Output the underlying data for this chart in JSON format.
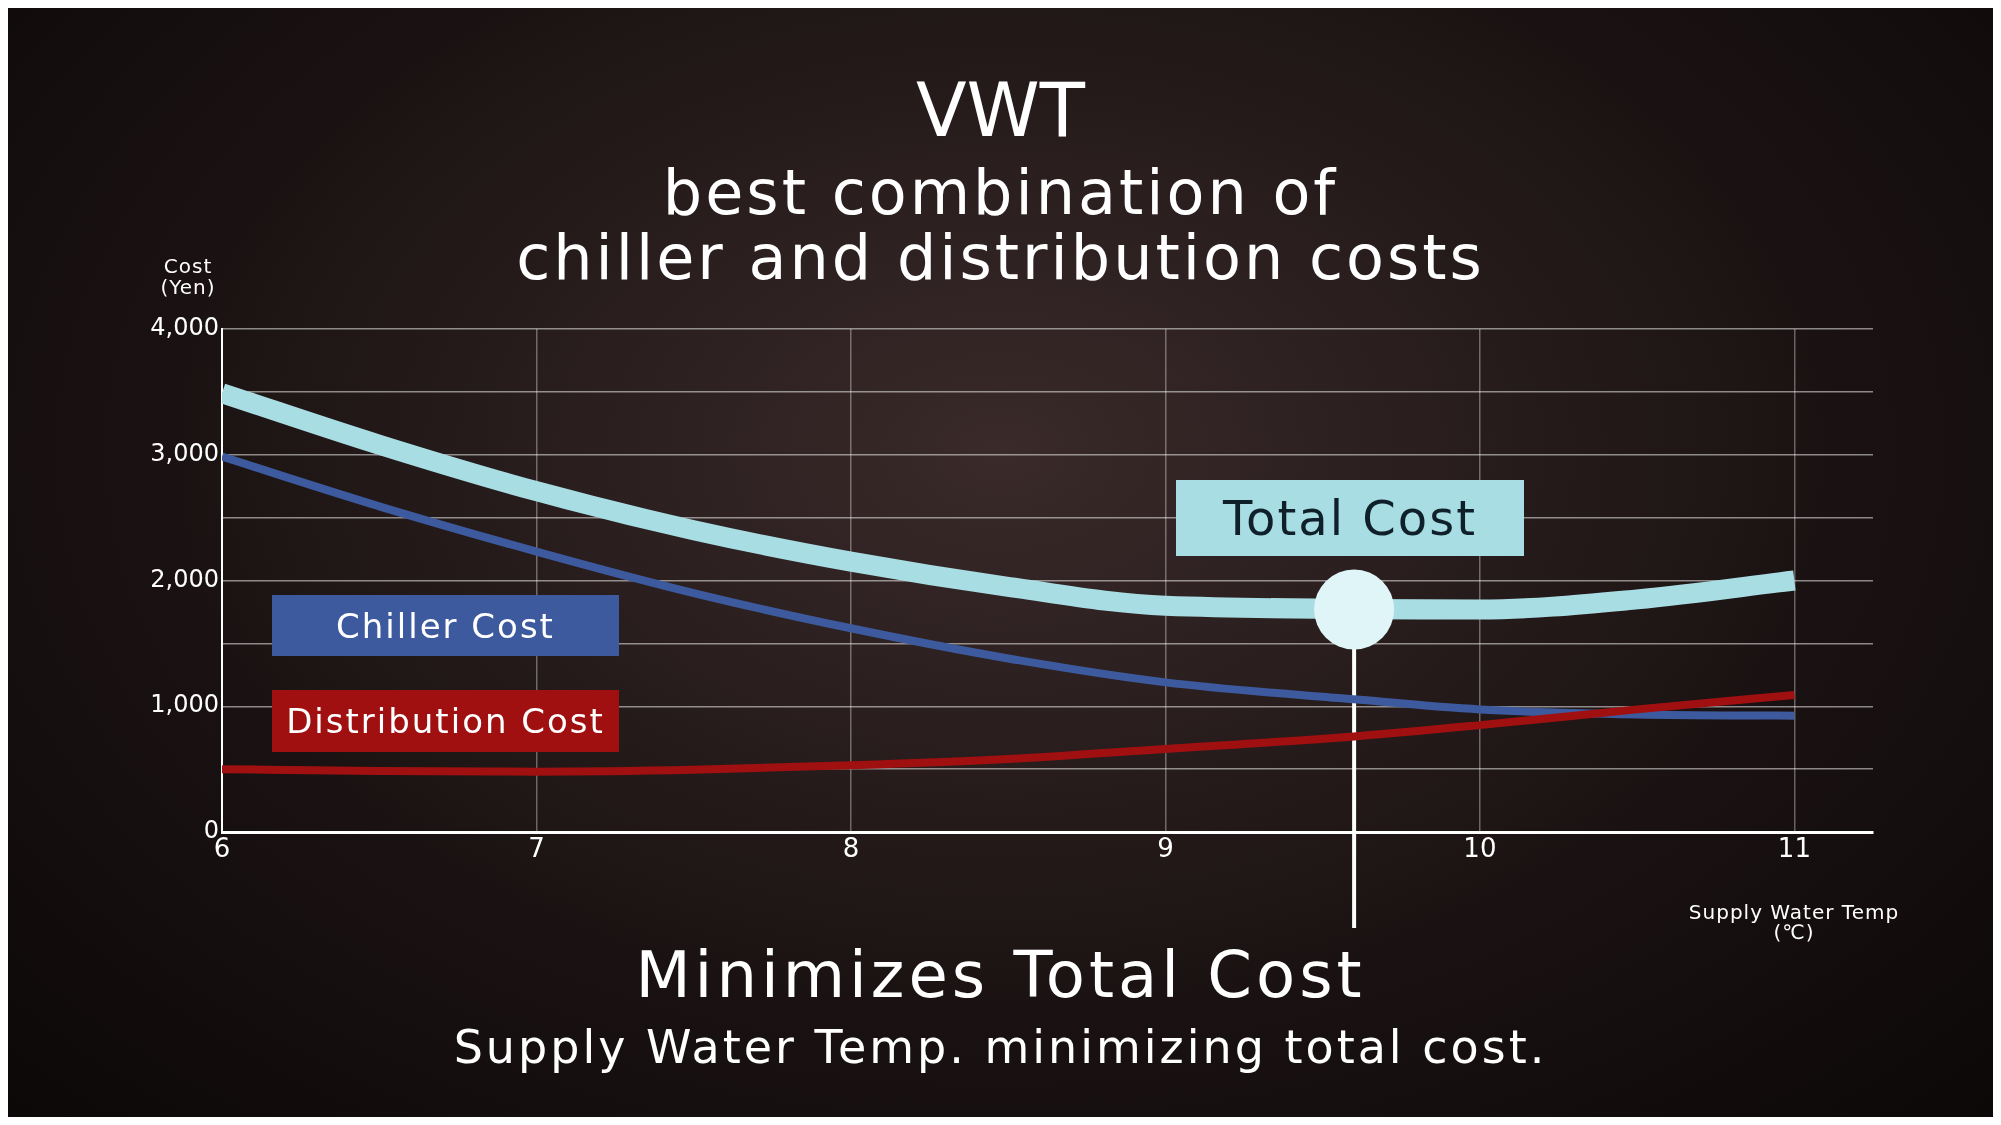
{
  "chart_data": {
    "type": "line",
    "title": "VWT",
    "subtitle": "best combination of\nchiller and distribution costs",
    "ylabel": "Cost\n(Yen)",
    "xlabel": "Supply Water Temp\n(℃)",
    "xlim": [
      6,
      11.25
    ],
    "xticks": [
      6,
      7,
      8,
      9,
      10,
      11
    ],
    "ylim": [
      0,
      4000
    ],
    "yticks": [
      0,
      {
        "value": 500,
        "label": null
      },
      {
        "value": 1000,
        "label": "1,000"
      },
      {
        "value": 1500,
        "label": null
      },
      {
        "value": 2000,
        "label": "2,000"
      },
      {
        "value": 2500,
        "label": null
      },
      {
        "value": 3000,
        "label": "3,000"
      },
      {
        "value": 3500,
        "label": null
      },
      {
        "value": 4000,
        "label": "4,000"
      }
    ],
    "grid": true,
    "legend": false,
    "marker": "none",
    "line_style": "solid",
    "series": [
      {
        "name": "Total Cost",
        "color": "#a8dde3",
        "x": [
          6,
          6.5,
          7,
          7.5,
          8,
          8.5,
          9,
          10,
          10.5,
          11
        ],
        "values": [
          3490,
          3080,
          2710,
          2400,
          2150,
          1950,
          1800,
          1770,
          1850,
          2000
        ]
      },
      {
        "name": "Chiller Cost",
        "color": "#3d5a9e",
        "x": [
          6,
          6.5,
          7,
          7.5,
          8,
          8.5,
          9,
          9.6,
          10,
          10.5,
          11
        ],
        "values": [
          2985,
          2590,
          2230,
          1900,
          1620,
          1380,
          1190,
          1055,
          975,
          935,
          925
        ]
      },
      {
        "name": "Distribution Cost",
        "color": "#a01010",
        "x": [
          6,
          6.5,
          7,
          7.5,
          8,
          8.5,
          9,
          9.6,
          10,
          10.5,
          11
        ],
        "values": [
          500,
          485,
          480,
          495,
          530,
          580,
          660,
          760,
          850,
          975,
          1090
        ]
      },
      {
        "type": "scatter",
        "color": "#dff5f8",
        "marker": "circle",
        "x": [
          9.6
        ],
        "values": [
          1770
        ]
      }
    ],
    "ref_lines": [
      {
        "axis": "x",
        "value": 9.6,
        "color": "#ffffff"
      }
    ],
    "annotations": [
      "Minimizes Total Cost",
      "Supply Water Temp. minimizing total cost."
    ]
  }
}
